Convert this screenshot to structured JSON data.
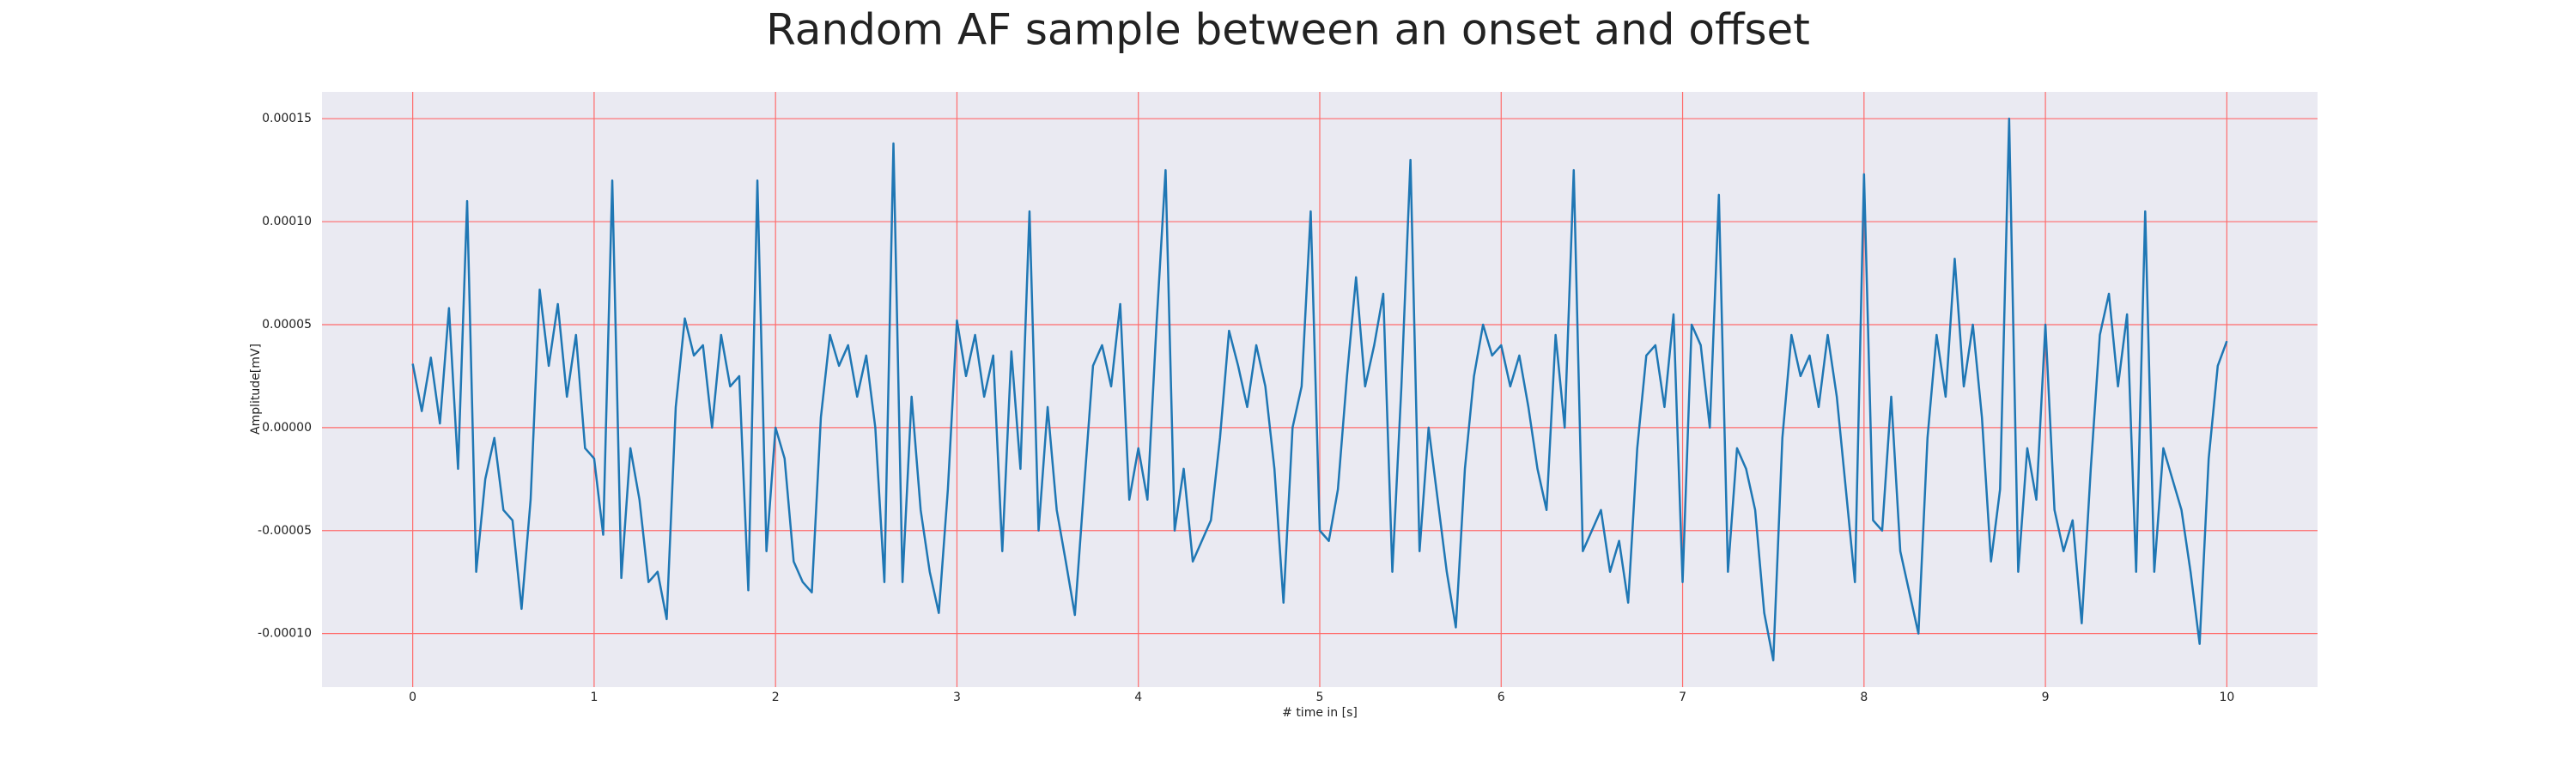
{
  "chart_data": {
    "type": "line",
    "title": "Random AF sample between an onset and offset",
    "xlabel": "# time in [s]",
    "ylabel": "Amplitude[mV]",
    "color": "#1f77b4",
    "grid": true,
    "grid_color": "#ff6b6b",
    "background": "#eaeaf2",
    "xlim": [
      -0.5,
      10.5
    ],
    "ylim": [
      -0.000126,
      0.000163
    ],
    "xticks": [
      0,
      1,
      2,
      3,
      4,
      5,
      6,
      7,
      8,
      9,
      10
    ],
    "yticks": [
      {
        "value": -0.0001,
        "label": "-0.00010"
      },
      {
        "value": -5e-05,
        "label": "-0.00005"
      },
      {
        "value": 0,
        "label": "0.00000"
      },
      {
        "value": 5e-05,
        "label": "0.00005"
      },
      {
        "value": 0.0001,
        "label": "0.00010"
      },
      {
        "value": 0.00015,
        "label": "0.00015"
      }
    ],
    "x": [
      0,
      0.05,
      0.1,
      0.15,
      0.2,
      0.25,
      0.3,
      0.35,
      0.4,
      0.45,
      0.5,
      0.55,
      0.6,
      0.65,
      0.7,
      0.75,
      0.8,
      0.85,
      0.9,
      0.95,
      1,
      1.05,
      1.1,
      1.15,
      1.2,
      1.25,
      1.3,
      1.35,
      1.4,
      1.45,
      1.5,
      1.55,
      1.6,
      1.65,
      1.7,
      1.75,
      1.8,
      1.85,
      1.9,
      1.95,
      2,
      2.05,
      2.1,
      2.15,
      2.2,
      2.25,
      2.3,
      2.35,
      2.4,
      2.45,
      2.5,
      2.55,
      2.6,
      2.65,
      2.7,
      2.75,
      2.8,
      2.85,
      2.9,
      2.95,
      3,
      3.05,
      3.1,
      3.15,
      3.2,
      3.25,
      3.3,
      3.35,
      3.4,
      3.45,
      3.5,
      3.55,
      3.6,
      3.65,
      3.7,
      3.75,
      3.8,
      3.85,
      3.9,
      3.95,
      4,
      4.05,
      4.1,
      4.15,
      4.2,
      4.25,
      4.3,
      4.35,
      4.4,
      4.45,
      4.5,
      4.55,
      4.6,
      4.65,
      4.7,
      4.75,
      4.8,
      4.85,
      4.9,
      4.95,
      5,
      5.05,
      5.1,
      5.15,
      5.2,
      5.25,
      5.3,
      5.35,
      5.4,
      5.45,
      5.5,
      5.55,
      5.6,
      5.65,
      5.7,
      5.75,
      5.8,
      5.85,
      5.9,
      5.95,
      6,
      6.05,
      6.1,
      6.15,
      6.2,
      6.25,
      6.3,
      6.35,
      6.4,
      6.45,
      6.5,
      6.55,
      6.6,
      6.65,
      6.7,
      6.75,
      6.8,
      6.85,
      6.9,
      6.95,
      7,
      7.05,
      7.1,
      7.15,
      7.2,
      7.25,
      7.3,
      7.35,
      7.4,
      7.45,
      7.5,
      7.55,
      7.6,
      7.65,
      7.7,
      7.75,
      7.8,
      7.85,
      7.9,
      7.95,
      8,
      8.05,
      8.1,
      8.15,
      8.2,
      8.25,
      8.3,
      8.35,
      8.4,
      8.45,
      8.5,
      8.55,
      8.6,
      8.65,
      8.7,
      8.75,
      8.8,
      8.85,
      8.9,
      8.95,
      9,
      9.05,
      9.1,
      9.15,
      9.2,
      9.25,
      9.3,
      9.35,
      9.4,
      9.45,
      9.5,
      9.55,
      9.6,
      9.65,
      9.7,
      9.75,
      9.8,
      9.85,
      9.9,
      9.95,
      10
    ],
    "values": [
      3.1e-05,
      8e-06,
      3.4e-05,
      2e-06,
      5.8e-05,
      -2e-05,
      0.00011,
      -7e-05,
      -2.5e-05,
      -5e-06,
      -4e-05,
      -4.5e-05,
      -8.8e-05,
      -3.5e-05,
      6.7e-05,
      3e-05,
      6e-05,
      1.5e-05,
      4.5e-05,
      -1e-05,
      -1.5e-05,
      -5.2e-05,
      0.00012,
      -7.3e-05,
      -1e-05,
      -3.5e-05,
      -7.5e-05,
      -7e-05,
      -9.3e-05,
      1e-05,
      5.3e-05,
      3.5e-05,
      4e-05,
      0,
      4.5e-05,
      2e-05,
      2.5e-05,
      -7.9e-05,
      0.00012,
      -6e-05,
      0,
      -1.5e-05,
      -6.5e-05,
      -7.5e-05,
      -8e-05,
      5e-06,
      4.5e-05,
      3e-05,
      4e-05,
      1.5e-05,
      3.5e-05,
      0,
      -7.5e-05,
      0.000138,
      -7.5e-05,
      1.5e-05,
      -4e-05,
      -7e-05,
      -9e-05,
      -3e-05,
      5.2e-05,
      2.5e-05,
      4.5e-05,
      1.5e-05,
      3.5e-05,
      -6e-05,
      3.7e-05,
      -2e-05,
      0.000105,
      -5e-05,
      1e-05,
      -4e-05,
      -6.5e-05,
      -9.1e-05,
      -3e-05,
      3e-05,
      4e-05,
      2e-05,
      6e-05,
      -3.5e-05,
      -1e-05,
      -3.5e-05,
      5e-05,
      0.000125,
      -5e-05,
      -2e-05,
      -6.5e-05,
      -5.5e-05,
      -4.5e-05,
      -5e-06,
      4.7e-05,
      3e-05,
      1e-05,
      4e-05,
      2e-05,
      -2e-05,
      -8.5e-05,
      0,
      2e-05,
      0.000105,
      -5e-05,
      -5.5e-05,
      -3e-05,
      2.5e-05,
      7.3e-05,
      2e-05,
      4e-05,
      6.5e-05,
      -7e-05,
      2e-05,
      0.00013,
      -6e-05,
      0,
      -3.5e-05,
      -7e-05,
      -9.7e-05,
      -2e-05,
      2.5e-05,
      5e-05,
      3.5e-05,
      4e-05,
      2e-05,
      3.5e-05,
      1e-05,
      -2e-05,
      -4e-05,
      4.5e-05,
      0,
      0.000125,
      -6e-05,
      -5e-05,
      -4e-05,
      -7e-05,
      -5.5e-05,
      -8.5e-05,
      -1e-05,
      3.5e-05,
      4e-05,
      1e-05,
      5.5e-05,
      -7.5e-05,
      5e-05,
      4e-05,
      0,
      0.000113,
      -7e-05,
      -1e-05,
      -2e-05,
      -4e-05,
      -9e-05,
      -0.000113,
      -5e-06,
      4.5e-05,
      2.5e-05,
      3.5e-05,
      1e-05,
      4.5e-05,
      1.5e-05,
      -3e-05,
      -7.5e-05,
      0.000123,
      -4.5e-05,
      -5e-05,
      1.5e-05,
      -6e-05,
      -8e-05,
      -0.0001,
      -5e-06,
      4.5e-05,
      1.5e-05,
      8.2e-05,
      2e-05,
      5e-05,
      5e-06,
      -6.5e-05,
      -3e-05,
      0.00015,
      -7e-05,
      -1e-05,
      -3.5e-05,
      5e-05,
      -4e-05,
      -6e-05,
      -4.5e-05,
      -9.5e-05,
      -2e-05,
      4.5e-05,
      6.5e-05,
      2e-05,
      5.5e-05,
      -7e-05,
      0.000105,
      -7e-05,
      -1e-05,
      -2.5e-05,
      -4e-05,
      -7e-05,
      -0.000105,
      -1.5e-05,
      3e-05,
      4.2e-05
    ]
  }
}
